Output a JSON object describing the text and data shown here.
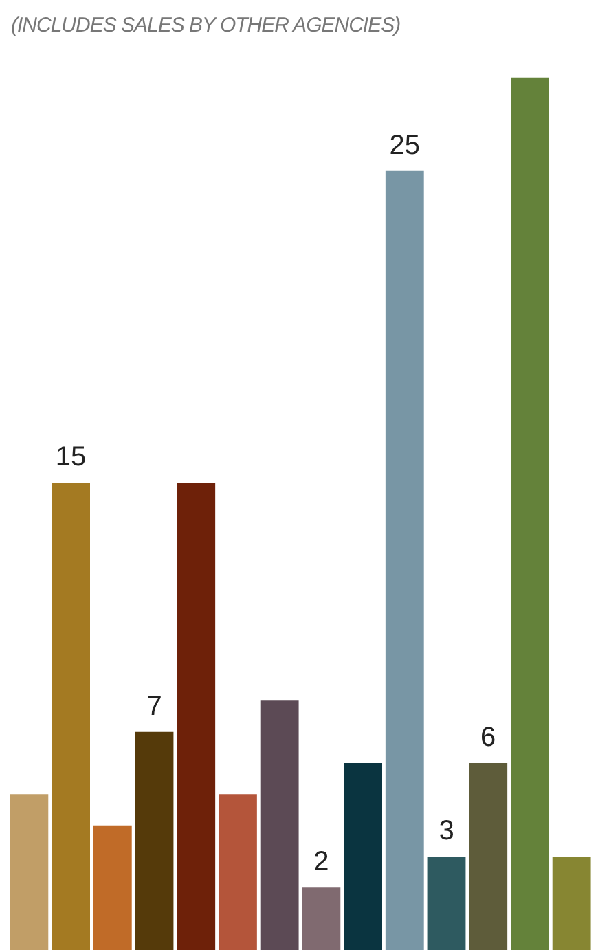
{
  "chart_data": {
    "type": "bar",
    "subtitle": "(INCLUDES SALES BY OTHER AGENCIES)",
    "categories": [
      null,
      null,
      null,
      null,
      null,
      null,
      null,
      null,
      null,
      null,
      null,
      null,
      null,
      null
    ],
    "values": [
      5,
      15,
      4,
      7,
      15,
      5,
      8,
      2,
      6,
      25,
      3,
      6,
      28,
      3
    ],
    "value_labels": [
      null,
      "15",
      null,
      "7",
      null,
      null,
      null,
      "2",
      null,
      "25",
      "3",
      "6",
      null,
      null
    ],
    "colors": [
      "#c19e67",
      "#a47a22",
      "#c06b28",
      "#553a0a",
      "#6e2109",
      "#b4553a",
      "#5c4a55",
      "#806a70",
      "#0a3440",
      "#7896a5",
      "#2e5a60",
      "#5e5c3a",
      "#64823a",
      "#878632"
    ],
    "legend": false
  }
}
